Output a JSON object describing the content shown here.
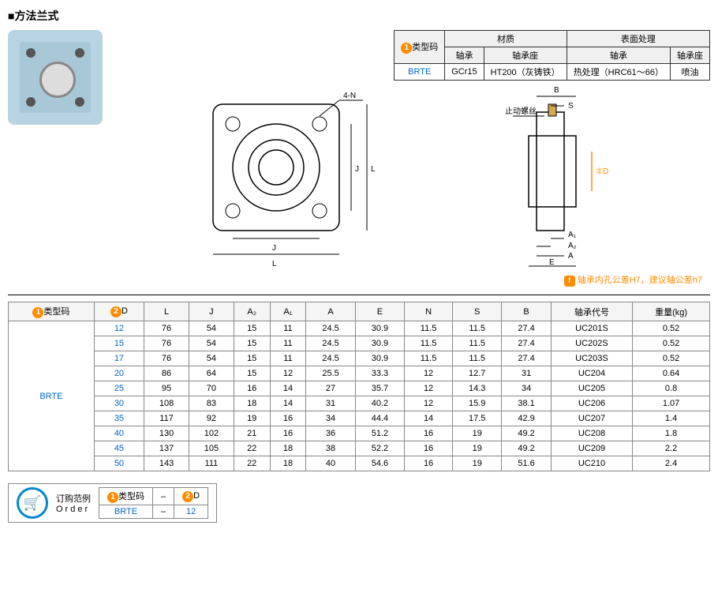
{
  "title": "■方法兰式",
  "spec_table": {
    "headers": {
      "type_code": "类型码",
      "material": "材质",
      "surface": "表面处理",
      "bearing": "轴承",
      "housing": "轴承座"
    },
    "row": {
      "code": "BRTE",
      "bearing_mat": "GCr15",
      "housing_mat": "HT200（灰铸铁）",
      "bearing_surf": "热处理（HRC61～66）",
      "housing_surf": "喷油"
    }
  },
  "diagram_labels": {
    "fourN": "4-N",
    "J": "J",
    "L": "L",
    "B": "B",
    "S": "S",
    "A": "A",
    "A1": "A₁",
    "A2": "A₂",
    "E": "E",
    "twoD": "②D",
    "lock_screw": "止动螺丝"
  },
  "note": "轴承内孔公差H7，建议轴公差h7",
  "note_badge": "!",
  "data_table": {
    "headers": [
      "类型码",
      "D",
      "L",
      "J",
      "A₂",
      "A₁",
      "A",
      "E",
      "N",
      "S",
      "B",
      "轴承代号",
      "重量(kg)"
    ],
    "type_code": "BRTE",
    "rows": [
      [
        "12",
        "76",
        "54",
        "15",
        "11",
        "24.5",
        "30.9",
        "11.5",
        "11.5",
        "27.4",
        "UC201S",
        "0.52"
      ],
      [
        "15",
        "76",
        "54",
        "15",
        "11",
        "24.5",
        "30.9",
        "11.5",
        "11.5",
        "27.4",
        "UC202S",
        "0.52"
      ],
      [
        "17",
        "76",
        "54",
        "15",
        "11",
        "24.5",
        "30.9",
        "11.5",
        "11.5",
        "27.4",
        "UC203S",
        "0.52"
      ],
      [
        "20",
        "86",
        "64",
        "15",
        "12",
        "25.5",
        "33.3",
        "12",
        "12.7",
        "31",
        "UC204",
        "0.64"
      ],
      [
        "25",
        "95",
        "70",
        "16",
        "14",
        "27",
        "35.7",
        "12",
        "14.3",
        "34",
        "UC205",
        "0.8"
      ],
      [
        "30",
        "108",
        "83",
        "18",
        "14",
        "31",
        "40.2",
        "12",
        "15.9",
        "38.1",
        "UC206",
        "1.07"
      ],
      [
        "35",
        "117",
        "92",
        "19",
        "16",
        "34",
        "44.4",
        "14",
        "17.5",
        "42.9",
        "UC207",
        "1.4"
      ],
      [
        "40",
        "130",
        "102",
        "21",
        "16",
        "36",
        "51.2",
        "16",
        "19",
        "49.2",
        "UC208",
        "1.8"
      ],
      [
        "45",
        "137",
        "105",
        "22",
        "18",
        "38",
        "52.2",
        "16",
        "19",
        "49.2",
        "UC209",
        "2.2"
      ],
      [
        "50",
        "143",
        "111",
        "22",
        "18",
        "40",
        "54.6",
        "16",
        "19",
        "51.6",
        "UC210",
        "2.4"
      ]
    ]
  },
  "order": {
    "label1": "订购范例",
    "label2": "Order",
    "type_code_header": "类型码",
    "d_header": "D",
    "code": "BRTE",
    "d_val": "12"
  }
}
